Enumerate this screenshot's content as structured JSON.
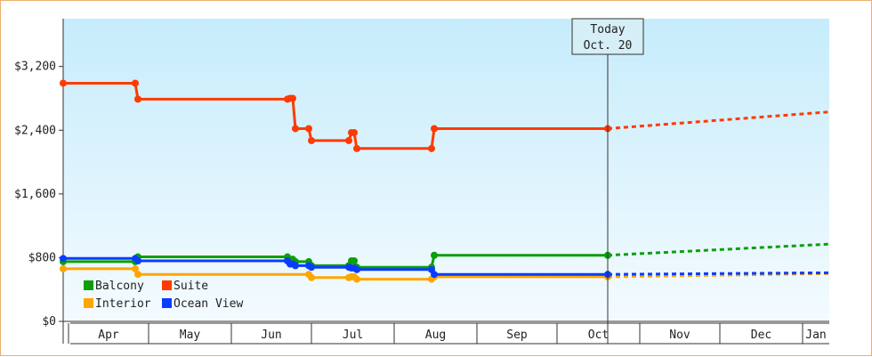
{
  "chart_data": {
    "type": "line",
    "title": "",
    "xlabel": "",
    "ylabel": "",
    "ylim": [
      0,
      3800
    ],
    "y_ticks": [
      {
        "value": 0,
        "label": "$0"
      },
      {
        "value": 800,
        "label": "$800"
      },
      {
        "value": 1600,
        "label": "$1,600"
      },
      {
        "value": 2400,
        "label": "$2,400"
      },
      {
        "value": 3200,
        "label": "$3,200"
      }
    ],
    "x_range": [
      "2014-03-30",
      "2015-01-11"
    ],
    "months": [
      {
        "label": "Apr",
        "start": "2014-04-01",
        "end": "2014-05-01"
      },
      {
        "label": "May",
        "start": "2014-05-01",
        "end": "2014-06-01"
      },
      {
        "label": "Jun",
        "start": "2014-06-01",
        "end": "2014-07-01"
      },
      {
        "label": "Jul",
        "start": "2014-07-01",
        "end": "2014-08-01"
      },
      {
        "label": "Aug",
        "start": "2014-08-01",
        "end": "2014-09-01"
      },
      {
        "label": "Sep",
        "start": "2014-09-01",
        "end": "2014-10-01"
      },
      {
        "label": "Oct",
        "start": "2014-10-01",
        "end": "2014-11-01"
      },
      {
        "label": "Nov",
        "start": "2014-11-01",
        "end": "2014-12-01"
      },
      {
        "label": "Dec",
        "start": "2014-12-01",
        "end": "2015-01-01"
      },
      {
        "label": "Jan",
        "start": "2015-01-01",
        "end": "2015-01-11"
      }
    ],
    "today": {
      "date": "2014-10-20",
      "line1": "Today",
      "line2": "Oct. 20"
    },
    "forecast_end": "2015-01-11",
    "grid": false,
    "legend_position": "bottom-left",
    "series": [
      {
        "name": "Suite",
        "color": "#ff3a00",
        "points": [
          [
            "2014-03-30",
            2990
          ],
          [
            "2014-04-26",
            2990
          ],
          [
            "2014-04-27",
            2790
          ],
          [
            "2014-06-22",
            2790
          ],
          [
            "2014-06-23",
            2800
          ],
          [
            "2014-06-24",
            2800
          ],
          [
            "2014-06-25",
            2420
          ],
          [
            "2014-06-30",
            2420
          ],
          [
            "2014-07-01",
            2270
          ],
          [
            "2014-07-15",
            2270
          ],
          [
            "2014-07-16",
            2370
          ],
          [
            "2014-07-17",
            2370
          ],
          [
            "2014-07-18",
            2170
          ],
          [
            "2014-08-15",
            2170
          ],
          [
            "2014-08-16",
            2420
          ],
          [
            "2014-10-20",
            2420
          ]
        ],
        "forecast_value": 2630
      },
      {
        "name": "Balcony",
        "color": "#0aa00a",
        "points": [
          [
            "2014-03-30",
            750
          ],
          [
            "2014-04-26",
            750
          ],
          [
            "2014-04-27",
            810
          ],
          [
            "2014-06-22",
            810
          ],
          [
            "2014-06-23",
            780
          ],
          [
            "2014-06-24",
            780
          ],
          [
            "2014-06-25",
            750
          ],
          [
            "2014-06-30",
            750
          ],
          [
            "2014-07-01",
            700
          ],
          [
            "2014-07-15",
            700
          ],
          [
            "2014-07-16",
            760
          ],
          [
            "2014-07-17",
            760
          ],
          [
            "2014-07-18",
            680
          ],
          [
            "2014-08-15",
            680
          ],
          [
            "2014-08-16",
            830
          ],
          [
            "2014-10-20",
            830
          ]
        ],
        "forecast_value": 970
      },
      {
        "name": "Interior",
        "color": "#ffa500",
        "points": [
          [
            "2014-03-30",
            660
          ],
          [
            "2014-04-26",
            660
          ],
          [
            "2014-04-27",
            590
          ],
          [
            "2014-06-30",
            590
          ],
          [
            "2014-07-01",
            550
          ],
          [
            "2014-07-15",
            550
          ],
          [
            "2014-07-16",
            560
          ],
          [
            "2014-07-17",
            560
          ],
          [
            "2014-07-18",
            530
          ],
          [
            "2014-08-15",
            530
          ],
          [
            "2014-08-16",
            560
          ],
          [
            "2014-10-20",
            560
          ]
        ],
        "forecast_value": 600
      },
      {
        "name": "Ocean View",
        "color": "#0a3cff",
        "points": [
          [
            "2014-03-30",
            790
          ],
          [
            "2014-04-26",
            790
          ],
          [
            "2014-04-27",
            760
          ],
          [
            "2014-06-22",
            760
          ],
          [
            "2014-06-23",
            720
          ],
          [
            "2014-06-24",
            720
          ],
          [
            "2014-06-25",
            700
          ],
          [
            "2014-06-30",
            700
          ],
          [
            "2014-07-01",
            680
          ],
          [
            "2014-07-15",
            680
          ],
          [
            "2014-07-16",
            670
          ],
          [
            "2014-07-17",
            670
          ],
          [
            "2014-07-18",
            650
          ],
          [
            "2014-08-15",
            650
          ],
          [
            "2014-08-16",
            590
          ],
          [
            "2014-10-20",
            590
          ]
        ],
        "forecast_value": 610
      }
    ],
    "legend": [
      {
        "name": "Balcony",
        "color": "#0aa00a"
      },
      {
        "name": "Suite",
        "color": "#ff3a00"
      },
      {
        "name": "Interior",
        "color": "#ffa500"
      },
      {
        "name": "Ocean View",
        "color": "#0a3cff"
      }
    ]
  }
}
